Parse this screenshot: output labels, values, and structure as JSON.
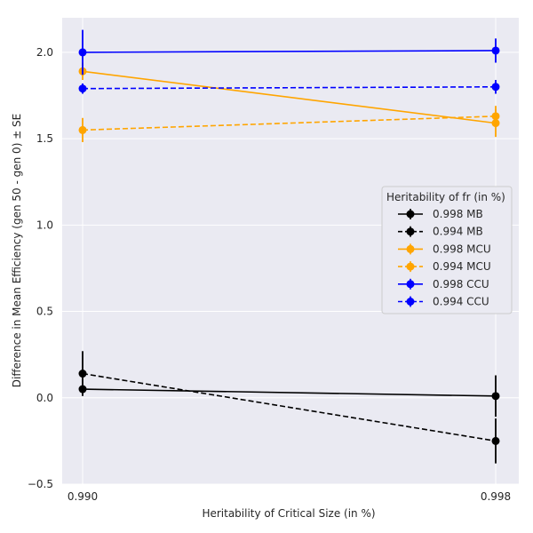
{
  "chart_data": {
    "type": "line",
    "xlabel": "Heritability of Critical Size (in %)",
    "ylabel": "Difference in Mean Efficiency (gen 50 - gen 0) ± SE",
    "x_categories": [
      "0.990",
      "0.998"
    ],
    "ylim": [
      -0.5,
      2.2
    ],
    "yticks": [
      -0.5,
      0.0,
      0.5,
      1.0,
      1.5,
      2.0
    ],
    "ytick_labels": [
      "−0.5",
      "0.0",
      "0.5",
      "1.0",
      "1.5",
      "2.0"
    ],
    "grid": true,
    "background": "#eaeaf2",
    "legend": {
      "title": "Heritability of fr (in %)",
      "placement": "right"
    },
    "series": [
      {
        "name": "0.998 MB",
        "color": "#000000",
        "dash": false,
        "y": [
          0.05,
          0.01
        ],
        "err": [
          0.0,
          0.12
        ]
      },
      {
        "name": "0.994 MB",
        "color": "#000000",
        "dash": true,
        "y": [
          0.14,
          -0.25
        ],
        "err": [
          0.13,
          0.13
        ]
      },
      {
        "name": "0.998 MCU",
        "color": "#ffa500",
        "dash": false,
        "y": [
          1.89,
          1.59
        ],
        "err": [
          0.05,
          0.08
        ]
      },
      {
        "name": "0.994 MCU",
        "color": "#ffa500",
        "dash": true,
        "y": [
          1.55,
          1.63
        ],
        "err": [
          0.07,
          0.06
        ]
      },
      {
        "name": "0.998 CCU",
        "color": "#0000ff",
        "dash": false,
        "y": [
          2.0,
          2.01
        ],
        "err": [
          0.13,
          0.07
        ]
      },
      {
        "name": "0.994 CCU",
        "color": "#0000ff",
        "dash": true,
        "y": [
          1.79,
          1.8
        ],
        "err": [
          0.03,
          0.04
        ]
      }
    ]
  }
}
